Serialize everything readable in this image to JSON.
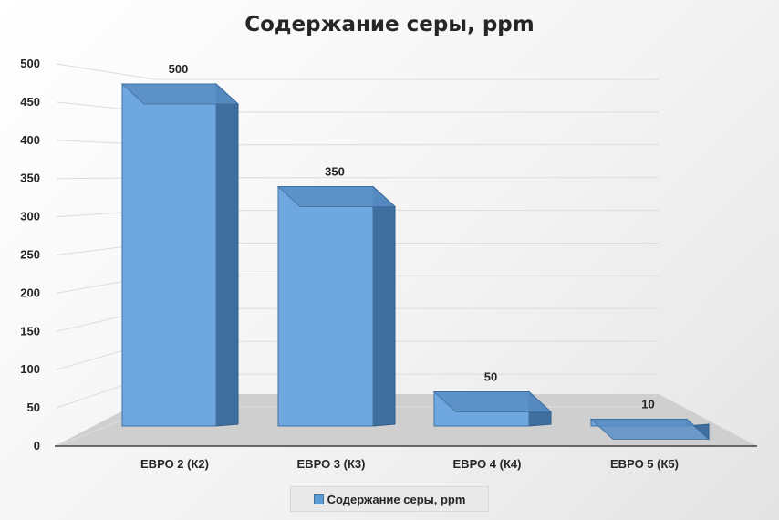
{
  "chart_data": {
    "type": "bar",
    "title": "Содержание серы, ppm",
    "categories": [
      "ЕВРО 2 (К2)",
      "ЕВРО 3 (К3)",
      "ЕВРО 4 (К4)",
      "ЕВРО 5 (К5)"
    ],
    "series": [
      {
        "name": "Содержание серы, ppm",
        "values": [
          500,
          350,
          50,
          10
        ]
      }
    ],
    "ylim": [
      0,
      500
    ],
    "yticks": [
      "0",
      "50",
      "100",
      "150",
      "200",
      "250",
      "300",
      "350",
      "400",
      "450",
      "500"
    ],
    "data_labels": [
      "500",
      "350",
      "50",
      "10"
    ],
    "legend": "bottom",
    "grid": true,
    "colors": {
      "bar_front": "#6fa8e0",
      "bar_side": "#3f6f9f",
      "bar_top": "#5a8fc6",
      "floor": "#cfcfcf"
    }
  }
}
